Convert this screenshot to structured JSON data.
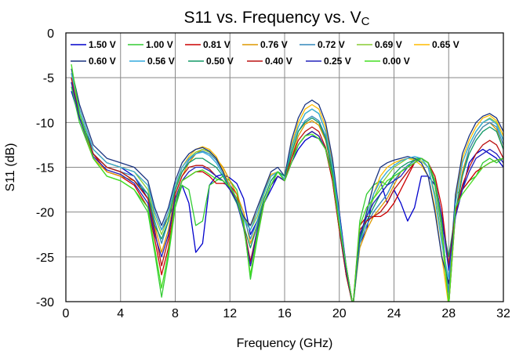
{
  "chart_data": {
    "type": "line",
    "title": "S11 vs. Frequency vs. V",
    "title_subscript": "C",
    "xlabel": "Frequency (GHz)",
    "ylabel": "S11 (dB)",
    "xlim": [
      0,
      32
    ],
    "ylim": [
      -30,
      0
    ],
    "xticks": [
      0,
      4,
      8,
      12,
      16,
      20,
      24,
      28,
      32
    ],
    "yticks": [
      0,
      -5,
      -10,
      -15,
      -20,
      -25,
      -30
    ],
    "grid": true,
    "legend_position": "top",
    "x": [
      0.4,
      1.0,
      2.0,
      3.0,
      4.0,
      5.0,
      6.0,
      6.5,
      7.0,
      7.5,
      8.0,
      8.5,
      9.0,
      9.5,
      10.0,
      10.5,
      11.0,
      11.5,
      12.0,
      12.5,
      13.0,
      13.5,
      14.0,
      14.5,
      15.0,
      15.5,
      16.0,
      16.5,
      17.0,
      17.5,
      18.0,
      18.5,
      19.0,
      19.5,
      20.0,
      20.5,
      21.0,
      21.5,
      22.0,
      22.5,
      23.0,
      23.5,
      24.0,
      24.5,
      25.0,
      25.5,
      26.0,
      26.5,
      27.0,
      27.5,
      28.0,
      28.5,
      29.0,
      29.5,
      30.0,
      30.5,
      31.0,
      31.5,
      32.0
    ],
    "series": [
      {
        "name": "1.50 V",
        "color": "#0000CC",
        "values": [
          -6.5,
          -9.5,
          -13.0,
          -14.5,
          -15.0,
          -16.0,
          -18.5,
          -20.0,
          -22.0,
          -20.5,
          -19.0,
          -17.0,
          -19.0,
          -24.5,
          -23.5,
          -17.0,
          -16.0,
          -15.8,
          -16.2,
          -16.8,
          -18.5,
          -22.5,
          -21.0,
          -19.0,
          -17.5,
          -16.0,
          -16.5,
          -14.5,
          -13.0,
          -12.0,
          -11.5,
          -11.8,
          -13.0,
          -15.5,
          -20.0,
          -26.0,
          -30.5,
          -23.5,
          -22.0,
          -18.0,
          -16.5,
          -19.0,
          -17.5,
          -19.0,
          -21.0,
          -19.5,
          -16.0,
          -16.0,
          -17.0,
          -21.0,
          -30.5,
          -20.0,
          -17.5,
          -14.5,
          -13.5,
          -13.0,
          -13.5,
          -14.0,
          -15.0
        ]
      },
      {
        "name": "1.00 V",
        "color": "#33CC33",
        "values": [
          -6.0,
          -10.0,
          -14.0,
          -16.0,
          -16.5,
          -17.5,
          -20.0,
          -24.5,
          -29.5,
          -25.0,
          -19.5,
          -17.0,
          -17.5,
          -21.5,
          -21.0,
          -17.0,
          -16.5,
          -16.0,
          -16.5,
          -17.5,
          -21.0,
          -27.5,
          -23.0,
          -19.0,
          -17.0,
          -15.5,
          -16.0,
          -14.0,
          -12.5,
          -11.5,
          -11.0,
          -11.5,
          -13.0,
          -16.5,
          -22.0,
          -27.0,
          -30.5,
          -21.0,
          -18.0,
          -17.0,
          -16.5,
          -17.0,
          -16.0,
          -15.5,
          -15.0,
          -14.0,
          -14.0,
          -14.5,
          -16.5,
          -22.0,
          -30.5,
          -18.0,
          -17.5,
          -16.5,
          -16.0,
          -14.5,
          -14.0,
          -14.5,
          -14.0
        ]
      },
      {
        "name": "0.81 V",
        "color": "#CC0000",
        "values": [
          -4.5,
          -9.0,
          -13.5,
          -15.5,
          -16.0,
          -17.0,
          -19.5,
          -23.0,
          -27.0,
          -24.0,
          -18.5,
          -16.5,
          -16.0,
          -15.5,
          -15.5,
          -16.0,
          -16.8,
          -16.8,
          -17.0,
          -18.0,
          -21.5,
          -26.0,
          -22.5,
          -19.0,
          -17.0,
          -16.0,
          -16.5,
          -14.5,
          -12.5,
          -11.5,
          -11.0,
          -11.5,
          -13.0,
          -16.5,
          -22.0,
          -26.0,
          -30.5,
          -21.5,
          -20.5,
          -20.5,
          -20.5,
          -20.0,
          -19.0,
          -17.5,
          -16.0,
          -14.5,
          -14.0,
          -14.5,
          -16.0,
          -19.5,
          -26.0,
          -20.0,
          -17.5,
          -16.5,
          -15.5,
          -15.0,
          -14.5,
          -14.2,
          -14.0
        ]
      },
      {
        "name": "0.76 V",
        "color": "#DD9900",
        "values": [
          -5.5,
          -9.5,
          -14.0,
          -15.5,
          -16.0,
          -16.5,
          -18.5,
          -21.5,
          -24.5,
          -22.0,
          -18.0,
          -16.0,
          -14.5,
          -13.5,
          -13.0,
          -13.3,
          -14.0,
          -15.0,
          -16.5,
          -18.0,
          -20.0,
          -23.5,
          -21.5,
          -19.0,
          -17.0,
          -16.0,
          -16.5,
          -14.0,
          -11.5,
          -10.2,
          -9.8,
          -10.3,
          -12.0,
          -15.5,
          -21.0,
          -27.0,
          -30.5,
          -24.0,
          -22.0,
          -20.5,
          -19.5,
          -18.5,
          -17.0,
          -15.5,
          -15.0,
          -14.5,
          -14.0,
          -14.5,
          -17.0,
          -22.0,
          -30.5,
          -20.0,
          -15.5,
          -13.0,
          -11.5,
          -10.5,
          -10.0,
          -10.8,
          -13.0
        ]
      },
      {
        "name": "0.72 V",
        "color": "#3388BB",
        "values": [
          -5.0,
          -9.0,
          -13.5,
          -15.0,
          -15.5,
          -16.0,
          -18.0,
          -21.0,
          -23.5,
          -21.0,
          -17.5,
          -15.5,
          -14.2,
          -13.5,
          -13.2,
          -13.5,
          -14.2,
          -15.5,
          -17.0,
          -18.5,
          -20.5,
          -23.0,
          -21.0,
          -18.5,
          -16.5,
          -15.5,
          -16.0,
          -13.5,
          -11.0,
          -9.8,
          -9.3,
          -9.8,
          -11.5,
          -15.0,
          -20.5,
          -26.0,
          -30.5,
          -23.5,
          -21.5,
          -20.0,
          -19.0,
          -18.0,
          -16.5,
          -15.5,
          -14.8,
          -14.3,
          -14.0,
          -14.5,
          -17.0,
          -22.0,
          -29.0,
          -20.0,
          -16.0,
          -13.0,
          -11.5,
          -10.5,
          -10.0,
          -10.5,
          -12.5
        ]
      },
      {
        "name": "0.69 V",
        "color": "#88CC33",
        "values": [
          -5.0,
          -8.5,
          -13.0,
          -14.5,
          -15.0,
          -15.5,
          -17.5,
          -20.5,
          -22.5,
          -20.5,
          -17.5,
          -15.0,
          -14.0,
          -13.3,
          -13.0,
          -13.3,
          -14.0,
          -15.5,
          -17.5,
          -19.0,
          -20.5,
          -22.0,
          -20.5,
          -18.0,
          -16.0,
          -15.5,
          -16.5,
          -13.0,
          -10.5,
          -9.0,
          -8.5,
          -9.0,
          -11.0,
          -15.0,
          -21.0,
          -27.0,
          -30.5,
          -23.0,
          -20.5,
          -18.5,
          -17.0,
          -16.0,
          -15.0,
          -14.5,
          -14.0,
          -14.0,
          -14.3,
          -15.0,
          -18.0,
          -23.0,
          -30.5,
          -19.0,
          -14.5,
          -12.5,
          -11.0,
          -10.0,
          -9.5,
          -10.0,
          -12.0
        ]
      },
      {
        "name": "0.65 V",
        "color": "#FFBB00",
        "values": [
          -4.5,
          -8.5,
          -13.0,
          -14.5,
          -15.0,
          -15.5,
          -17.0,
          -20.0,
          -22.0,
          -20.0,
          -17.0,
          -15.0,
          -13.8,
          -13.0,
          -12.7,
          -13.0,
          -13.8,
          -15.3,
          -17.2,
          -19.0,
          -20.5,
          -21.5,
          -20.0,
          -17.5,
          -15.8,
          -15.5,
          -16.5,
          -12.5,
          -10.0,
          -8.5,
          -8.0,
          -8.5,
          -10.5,
          -14.5,
          -20.5,
          -27.0,
          -30.5,
          -23.5,
          -20.5,
          -18.0,
          -16.0,
          -15.0,
          -14.5,
          -14.2,
          -14.0,
          -14.2,
          -14.8,
          -16.0,
          -19.5,
          -25.0,
          -30.5,
          -18.5,
          -14.0,
          -12.0,
          -10.5,
          -9.5,
          -9.2,
          -9.8,
          -11.5
        ]
      },
      {
        "name": "0.60 V",
        "color": "#1A3380",
        "values": [
          -4.0,
          -8.0,
          -12.5,
          -14.0,
          -14.5,
          -15.0,
          -16.5,
          -19.5,
          -21.5,
          -19.5,
          -16.5,
          -14.5,
          -13.5,
          -13.0,
          -12.8,
          -13.2,
          -14.0,
          -15.5,
          -17.5,
          -19.0,
          -20.5,
          -21.5,
          -19.5,
          -17.5,
          -15.5,
          -15.0,
          -16.0,
          -12.0,
          -9.5,
          -8.0,
          -7.5,
          -8.0,
          -10.0,
          -14.0,
          -20.0,
          -26.5,
          -30.5,
          -23.0,
          -20.0,
          -17.0,
          -15.0,
          -14.5,
          -14.2,
          -14.0,
          -13.8,
          -14.0,
          -14.5,
          -16.0,
          -20.0,
          -25.0,
          -28.0,
          -18.0,
          -13.5,
          -11.5,
          -10.0,
          -9.3,
          -9.0,
          -9.5,
          -11.0
        ]
      },
      {
        "name": "0.56 V",
        "color": "#33AADD",
        "values": [
          -4.5,
          -8.5,
          -13.0,
          -14.5,
          -15.0,
          -15.5,
          -17.0,
          -20.0,
          -22.0,
          -20.0,
          -17.0,
          -15.0,
          -14.0,
          -13.5,
          -13.3,
          -13.7,
          -14.5,
          -15.8,
          -17.5,
          -19.0,
          -20.8,
          -22.0,
          -20.0,
          -17.8,
          -16.0,
          -15.5,
          -16.3,
          -12.8,
          -10.5,
          -9.0,
          -8.5,
          -9.0,
          -11.0,
          -14.8,
          -20.5,
          -26.5,
          -30.5,
          -23.5,
          -20.5,
          -18.0,
          -16.5,
          -15.5,
          -14.8,
          -14.3,
          -14.0,
          -13.8,
          -14.0,
          -15.0,
          -18.5,
          -23.5,
          -27.5,
          -19.0,
          -14.5,
          -12.5,
          -11.0,
          -10.0,
          -9.6,
          -10.2,
          -12.0
        ]
      },
      {
        "name": "0.50 V",
        "color": "#119966",
        "values": [
          -5.5,
          -9.0,
          -13.5,
          -15.0,
          -15.5,
          -16.5,
          -18.0,
          -21.5,
          -23.0,
          -21.0,
          -17.5,
          -15.5,
          -14.5,
          -14.0,
          -14.0,
          -14.5,
          -15.0,
          -16.0,
          -17.5,
          -19.0,
          -21.5,
          -24.0,
          -21.5,
          -18.5,
          -16.5,
          -15.5,
          -16.0,
          -13.5,
          -11.0,
          -10.0,
          -9.5,
          -10.0,
          -11.8,
          -15.5,
          -21.5,
          -27.0,
          -30.5,
          -23.0,
          -21.0,
          -19.5,
          -18.0,
          -17.0,
          -15.8,
          -15.0,
          -14.5,
          -14.2,
          -14.0,
          -14.5,
          -17.0,
          -21.0,
          -25.0,
          -20.0,
          -16.0,
          -13.5,
          -12.0,
          -11.0,
          -10.5,
          -11.0,
          -13.0
        ]
      },
      {
        "name": "0.40 V",
        "color": "#BB1111",
        "values": [
          -5.0,
          -9.5,
          -13.5,
          -15.0,
          -15.5,
          -16.5,
          -18.5,
          -22.0,
          -26.0,
          -23.0,
          -18.0,
          -16.0,
          -15.0,
          -14.8,
          -14.8,
          -15.2,
          -16.0,
          -16.5,
          -17.5,
          -18.5,
          -21.5,
          -25.5,
          -22.0,
          -19.0,
          -17.0,
          -16.0,
          -16.5,
          -14.0,
          -12.0,
          -11.0,
          -10.5,
          -11.0,
          -12.8,
          -16.0,
          -22.0,
          -27.0,
          -30.5,
          -22.0,
          -21.0,
          -20.5,
          -20.0,
          -19.0,
          -17.5,
          -16.5,
          -15.5,
          -14.5,
          -14.0,
          -14.5,
          -16.5,
          -20.5,
          -26.0,
          -20.0,
          -17.0,
          -15.0,
          -13.5,
          -12.5,
          -12.0,
          -12.5,
          -14.0
        ]
      },
      {
        "name": "0.25 V",
        "color": "#2222BB",
        "values": [
          -5.5,
          -9.5,
          -13.8,
          -15.3,
          -15.8,
          -16.8,
          -19.0,
          -22.5,
          -25.0,
          -22.5,
          -18.5,
          -16.5,
          -15.5,
          -15.0,
          -15.0,
          -15.4,
          -16.0,
          -16.5,
          -17.5,
          -18.8,
          -21.8,
          -26.0,
          -22.0,
          -19.0,
          -17.0,
          -16.0,
          -16.5,
          -14.5,
          -12.5,
          -11.5,
          -11.0,
          -11.5,
          -13.0,
          -16.0,
          -21.5,
          -26.5,
          -30.5,
          -22.5,
          -20.5,
          -19.0,
          -18.0,
          -17.0,
          -16.5,
          -16.0,
          -15.0,
          -14.5,
          -14.0,
          -14.5,
          -16.5,
          -20.5,
          -26.5,
          -20.5,
          -17.5,
          -15.5,
          -14.0,
          -13.5,
          -13.0,
          -13.5,
          -14.5
        ]
      },
      {
        "name": "0.00 V",
        "color": "#44DD22",
        "values": [
          -3.5,
          -9.0,
          -14.0,
          -16.0,
          -16.5,
          -17.5,
          -19.5,
          -24.0,
          -28.5,
          -24.5,
          -19.0,
          -16.5,
          -16.0,
          -15.5,
          -15.3,
          -15.8,
          -16.3,
          -16.5,
          -17.2,
          -18.5,
          -21.5,
          -27.0,
          -22.5,
          -19.0,
          -17.0,
          -15.5,
          -16.5,
          -14.5,
          -12.5,
          -11.5,
          -11.3,
          -11.8,
          -13.0,
          -16.0,
          -21.5,
          -26.0,
          -30.5,
          -21.5,
          -19.5,
          -18.5,
          -17.5,
          -16.5,
          -16.0,
          -15.5,
          -15.0,
          -14.5,
          -14.0,
          -14.5,
          -16.5,
          -21.5,
          -30.5,
          -19.5,
          -18.0,
          -17.0,
          -16.0,
          -15.0,
          -14.5,
          -14.2,
          -14.0
        ]
      }
    ]
  }
}
